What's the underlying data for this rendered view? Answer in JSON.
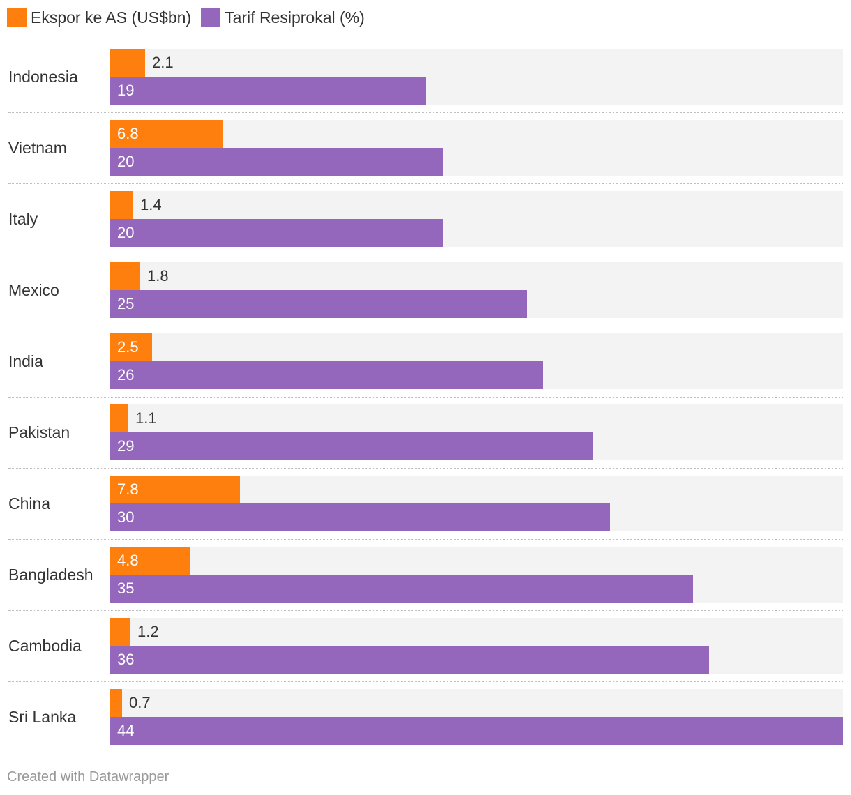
{
  "chart_data": {
    "type": "bar",
    "orientation": "horizontal-grouped",
    "categories": [
      "Indonesia",
      "Vietnam",
      "Italy",
      "Mexico",
      "India",
      "Pakistan",
      "China",
      "Bangladesh",
      "Cambodia",
      "Sri Lanka"
    ],
    "series": [
      {
        "name": "Ekspor ke AS (US$bn)",
        "color": "#ff7f0e",
        "values": [
          2.1,
          6.8,
          1.4,
          1.8,
          2.5,
          1.1,
          7.8,
          4.8,
          1.2,
          0.7
        ],
        "labels": [
          "2.1",
          "6.8",
          "1.4",
          "1.8",
          "2.5",
          "1.1",
          "7.8",
          "4.8",
          "1.2",
          "0.7"
        ]
      },
      {
        "name": "Tarif Resiprokal (%)",
        "color": "#9467bd",
        "values": [
          19,
          20,
          20,
          25,
          26,
          29,
          30,
          35,
          36,
          44
        ],
        "labels": [
          "19",
          "20",
          "20",
          "25",
          "26",
          "29",
          "30",
          "35",
          "36",
          "44"
        ]
      }
    ],
    "xlim": [
      0,
      44
    ],
    "legend": "top-left",
    "grid": false,
    "background_band_color": "#f3f3f3"
  },
  "footer": {
    "credit": "Created with Datawrapper"
  }
}
